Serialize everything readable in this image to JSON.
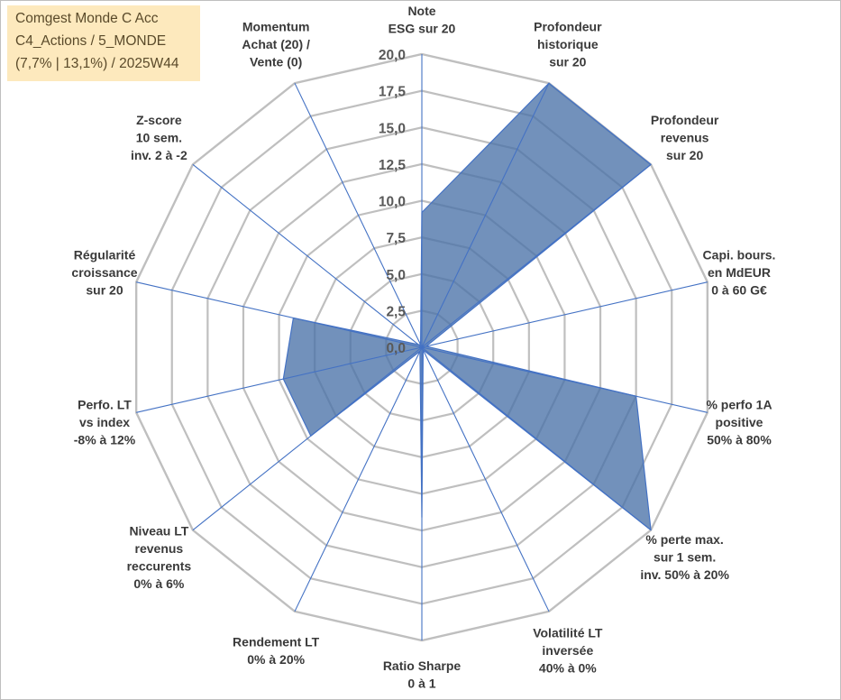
{
  "title_box": {
    "line1": "Comgest Monde C Acc",
    "line2": "C4_Actions / 5_MONDE",
    "line3": "(7,7% | 13,1%) / 2025W44"
  },
  "chart_data": {
    "type": "radar",
    "rmin": 0,
    "rmax": 20,
    "ticks": [
      "0,0",
      "2,5",
      "5,0",
      "7,5",
      "10,0",
      "12,5",
      "15,0",
      "17,5",
      "20,0"
    ],
    "axes": [
      {
        "label": [
          "Note",
          "ESG sur 20"
        ],
        "value": 9.2
      },
      {
        "label": [
          "Profondeur",
          "historique",
          "sur 20"
        ],
        "value": 20
      },
      {
        "label": [
          "Profondeur",
          "revenus",
          "sur 20"
        ],
        "value": 20
      },
      {
        "label": [
          "Capi. bours.",
          "en MdEUR",
          "0 à 60 G€"
        ],
        "value": 0.3
      },
      {
        "label": [
          "% perfo 1A",
          "positive",
          "50% à 80%"
        ],
        "value": 15.0
      },
      {
        "label": [
          "% perte max.",
          "sur 1 sem.",
          "inv. 50% à 20%"
        ],
        "value": 20
      },
      {
        "label": [
          "Volatilité LT",
          "inversée",
          "40% à 0%"
        ],
        "value": 0.2
      },
      {
        "label": [
          "Ratio Sharpe",
          "0 à 1"
        ],
        "value": 11.6
      },
      {
        "label": [
          "Rendement LT",
          "0% à 20%"
        ],
        "value": 0.3
      },
      {
        "label": [
          "Niveau LT",
          "revenus",
          "reccurents",
          "0% à 6%"
        ],
        "value": 9.7
      },
      {
        "label": [
          "Perfo. LT",
          "vs index",
          "-8% à 12%"
        ],
        "value": 9.7
      },
      {
        "label": [
          "Régularité",
          "croissance",
          "sur 20"
        ],
        "value": 9.0
      },
      {
        "label": [
          "Z-score",
          "10 sem.",
          "inv. 2 à -2"
        ],
        "value": 0.3
      },
      {
        "label": [
          "Momentum",
          "Achat (20) /",
          "Vente (0)"
        ],
        "value": 0.2
      }
    ],
    "colors": {
      "fill": "#4a72a8",
      "stroke": "#4472c4",
      "grid": "#bfbfbf",
      "spoke": "#4472c4"
    }
  }
}
